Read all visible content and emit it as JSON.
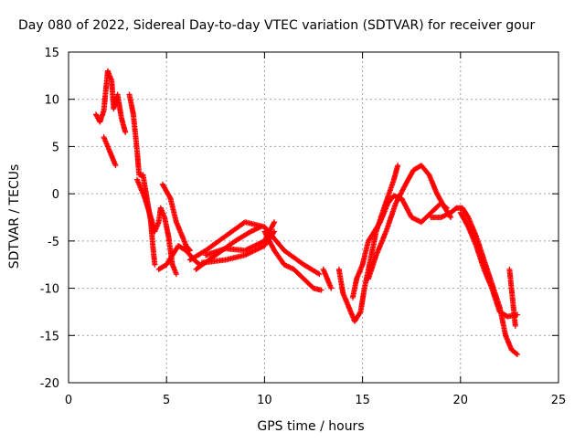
{
  "chart_data": {
    "type": "scatter",
    "title": "Day 080 of 2022, Sidereal Day-to-day VTEC variation (SDTVAR) for receiver gour",
    "xlabel": "GPS time / hours",
    "ylabel": "SDTVAR / TECUs",
    "xlim": [
      0,
      25
    ],
    "ylim": [
      -20,
      15
    ],
    "x_ticks": [
      0,
      5,
      10,
      15,
      20,
      25
    ],
    "y_ticks": [
      15,
      10,
      5,
      0,
      -5,
      -10,
      -15,
      -20
    ],
    "grid": true,
    "marker": "+",
    "series": [
      {
        "name": "SDTVAR",
        "color": "#ff0000",
        "tracks": [
          [
            [
              1.4,
              8.4
            ],
            [
              1.6,
              7.6
            ],
            [
              1.8,
              8.8
            ],
            [
              2.0,
              13.0
            ],
            [
              2.2,
              12.0
            ],
            [
              2.3,
              9.0
            ],
            [
              2.5,
              10.5
            ],
            [
              2.7,
              8.0
            ],
            [
              2.9,
              6.5
            ]
          ],
          [
            [
              1.8,
              6.0
            ],
            [
              2.0,
              5.0
            ],
            [
              2.2,
              4.0
            ],
            [
              2.4,
              3.0
            ]
          ],
          [
            [
              3.1,
              10.5
            ],
            [
              3.3,
              8.5
            ],
            [
              3.5,
              4.5
            ],
            [
              3.6,
              2.0
            ],
            [
              3.8,
              2.0
            ],
            [
              4.0,
              -0.5
            ],
            [
              4.2,
              -3.0
            ],
            [
              4.3,
              -5.5
            ],
            [
              4.4,
              -7.5
            ]
          ],
          [
            [
              3.5,
              1.5
            ],
            [
              3.9,
              -0.5
            ],
            [
              4.2,
              -2.5
            ],
            [
              4.4,
              -4.0
            ],
            [
              4.6,
              -3.0
            ],
            [
              4.7,
              -1.5
            ],
            [
              4.9,
              -2.5
            ],
            [
              5.1,
              -4.5
            ],
            [
              5.3,
              -7.5
            ],
            [
              5.5,
              -8.5
            ]
          ],
          [
            [
              4.6,
              -8.0
            ],
            [
              5.0,
              -7.5
            ],
            [
              5.3,
              -6.5
            ],
            [
              5.6,
              -5.5
            ],
            [
              6.0,
              -6.0
            ],
            [
              6.4,
              -7.0
            ],
            [
              6.7,
              -7.5
            ]
          ],
          [
            [
              4.8,
              1.0
            ],
            [
              5.2,
              -0.5
            ],
            [
              5.5,
              -3.0
            ],
            [
              5.8,
              -4.5
            ],
            [
              6.0,
              -5.5
            ],
            [
              6.2,
              -6.0
            ]
          ],
          [
            [
              6.2,
              -7.0
            ],
            [
              7.0,
              -6.0
            ],
            [
              8.0,
              -4.5
            ],
            [
              9.0,
              -3.0
            ],
            [
              10.0,
              -3.5
            ],
            [
              10.4,
              -4.5
            ],
            [
              11.0,
              -6.0
            ],
            [
              12.0,
              -7.5
            ],
            [
              12.8,
              -8.5
            ]
          ],
          [
            [
              6.5,
              -8.0
            ],
            [
              7.5,
              -6.5
            ],
            [
              8.5,
              -5.0
            ],
            [
              9.3,
              -4.0
            ],
            [
              9.8,
              -3.5
            ]
          ],
          [
            [
              6.8,
              -7.3
            ],
            [
              8.0,
              -7.0
            ],
            [
              9.0,
              -6.5
            ],
            [
              10.0,
              -5.5
            ],
            [
              10.5,
              -4.0
            ]
          ],
          [
            [
              7.0,
              -6.5
            ],
            [
              8.0,
              -5.8
            ],
            [
              9.0,
              -6.0
            ],
            [
              10.0,
              -5.0
            ],
            [
              10.5,
              -3.0
            ]
          ],
          [
            [
              10.0,
              -4.0
            ],
            [
              10.5,
              -6.0
            ],
            [
              11.0,
              -7.5
            ],
            [
              11.5,
              -8.0
            ],
            [
              12.0,
              -9.0
            ],
            [
              12.5,
              -10.0
            ],
            [
              12.9,
              -10.2
            ]
          ],
          [
            [
              13.0,
              -8.0
            ],
            [
              13.2,
              -9.0
            ],
            [
              13.4,
              -10.0
            ]
          ],
          [
            [
              13.8,
              -8.0
            ],
            [
              14.0,
              -10.5
            ],
            [
              14.3,
              -12.0
            ],
            [
              14.6,
              -13.5
            ],
            [
              14.9,
              -12.5
            ],
            [
              15.1,
              -10.0
            ],
            [
              15.4,
              -7.0
            ],
            [
              15.7,
              -4.0
            ],
            [
              16.1,
              -1.5
            ],
            [
              16.6,
              1.5
            ],
            [
              16.8,
              3.0
            ]
          ],
          [
            [
              14.5,
              -11.0
            ],
            [
              14.7,
              -9.0
            ],
            [
              15.0,
              -7.5
            ],
            [
              15.3,
              -5.0
            ],
            [
              15.6,
              -4.0
            ],
            [
              15.9,
              -3.0
            ],
            [
              16.3,
              -1.0
            ],
            [
              16.6,
              -0.2
            ],
            [
              17.0,
              -0.5
            ],
            [
              17.5,
              -2.5
            ],
            [
              18.0,
              -3.0
            ],
            [
              18.5,
              -2.0
            ],
            [
              19.0,
              -1.0
            ],
            [
              19.3,
              -1.5
            ]
          ],
          [
            [
              15.3,
              -9.0
            ],
            [
              15.7,
              -6.5
            ],
            [
              16.2,
              -4.0
            ],
            [
              16.7,
              -1.0
            ],
            [
              17.2,
              1.0
            ],
            [
              17.6,
              2.5
            ],
            [
              18.0,
              3.0
            ],
            [
              18.4,
              2.0
            ],
            [
              18.8,
              0.0
            ],
            [
              19.2,
              -1.5
            ],
            [
              19.5,
              -2.5
            ]
          ],
          [
            [
              18.5,
              -2.5
            ],
            [
              19.0,
              -2.5
            ],
            [
              19.5,
              -2.0
            ],
            [
              19.8,
              -1.5
            ],
            [
              20.1,
              -1.5
            ],
            [
              20.4,
              -2.5
            ],
            [
              20.8,
              -4.5
            ],
            [
              21.2,
              -7.0
            ],
            [
              21.6,
              -9.5
            ],
            [
              22.0,
              -12.0
            ],
            [
              22.3,
              -15.0
            ],
            [
              22.6,
              -16.5
            ],
            [
              22.9,
              -17.0
            ]
          ],
          [
            [
              20.0,
              -2.0
            ],
            [
              20.4,
              -3.5
            ],
            [
              20.8,
              -5.5
            ],
            [
              21.2,
              -8.0
            ],
            [
              21.6,
              -10.0
            ],
            [
              22.0,
              -12.5
            ],
            [
              22.4,
              -13.0
            ],
            [
              22.9,
              -12.8
            ]
          ],
          [
            [
              22.5,
              -8.0
            ],
            [
              22.6,
              -10.0
            ],
            [
              22.7,
              -12.0
            ],
            [
              22.8,
              -14.0
            ]
          ]
        ]
      }
    ]
  }
}
